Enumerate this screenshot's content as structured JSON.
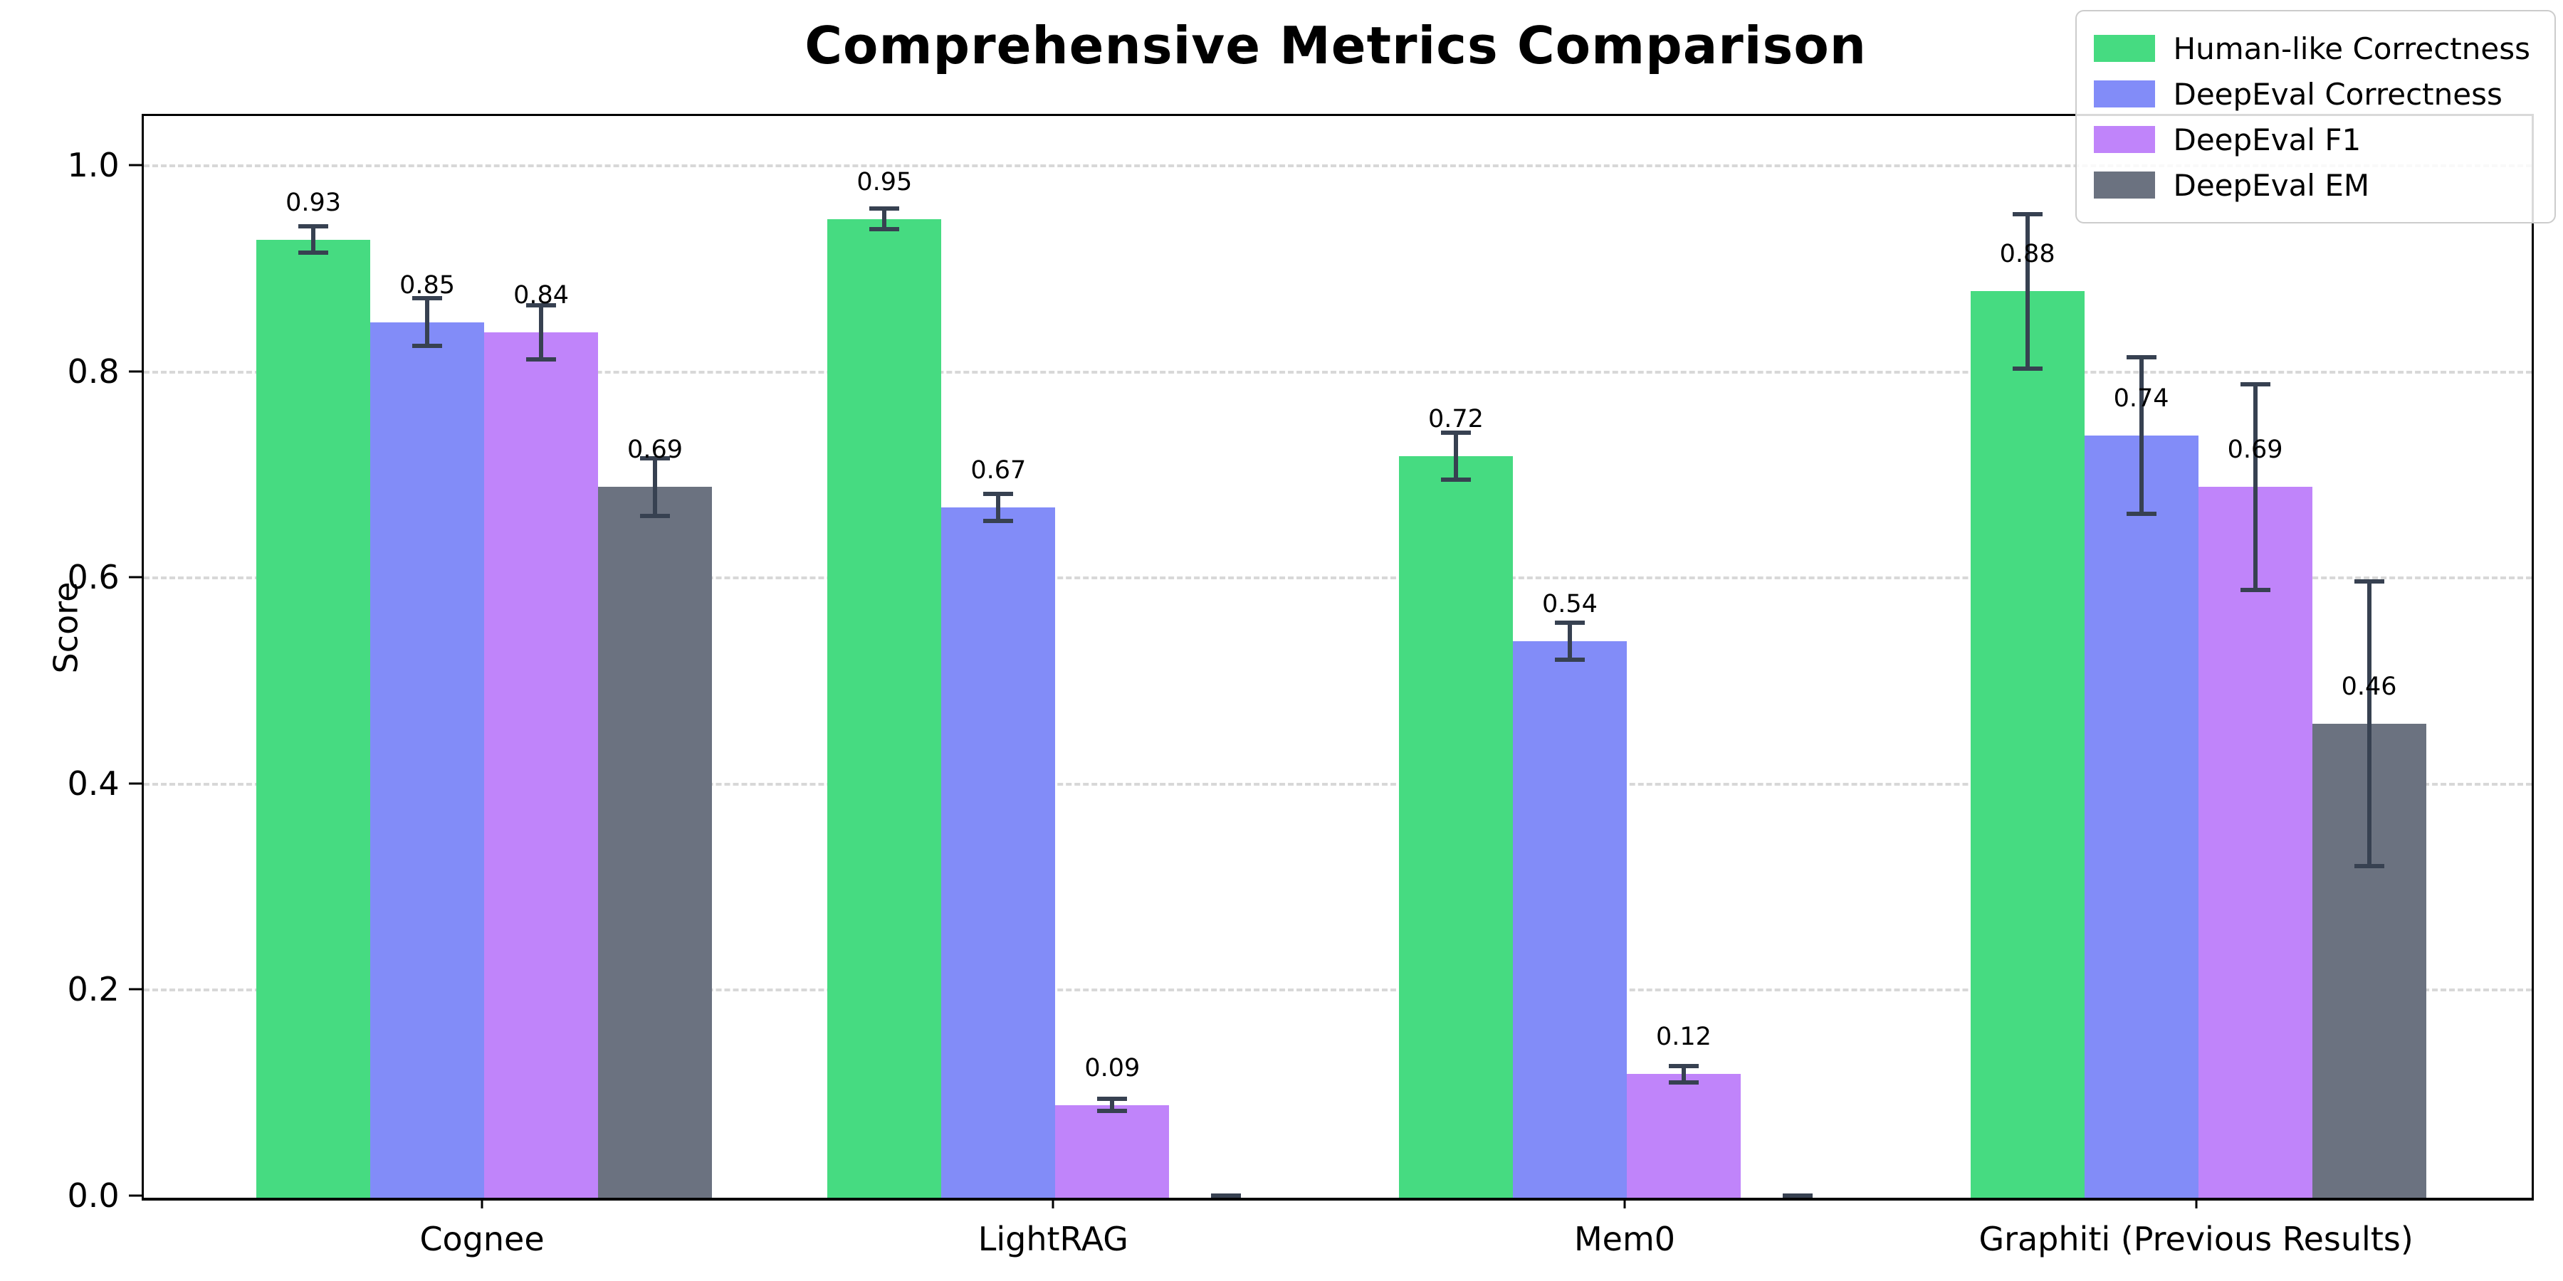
{
  "chart_data": {
    "type": "bar",
    "title": "Comprehensive Metrics Comparison",
    "ylabel": "Score",
    "xlabel": "",
    "ylim": [
      0,
      1.05
    ],
    "yticks": [
      0.0,
      0.2,
      0.4,
      0.6,
      0.8,
      1.0
    ],
    "ytick_labels": [
      "0.0",
      "0.2",
      "0.4",
      "0.6",
      "0.8",
      "1.0"
    ],
    "grid": "horizontal dashed gridlines at each ytick above 0",
    "legend_position": "upper right",
    "categories": [
      "Cognee",
      "LightRAG",
      "Mem0",
      "Graphiti (Previous Results)"
    ],
    "series": [
      {
        "name": "Human-like Correctness",
        "color": "#46db81",
        "values": [
          0.93,
          0.95,
          0.72,
          0.88
        ],
        "errors": [
          0.015,
          0.012,
          0.025,
          0.077
        ],
        "labels": [
          "0.93",
          "0.95",
          "0.72",
          "0.88"
        ]
      },
      {
        "name": "DeepEval Correctness",
        "color": "#828cf8",
        "values": [
          0.85,
          0.67,
          0.54,
          0.74
        ],
        "errors": [
          0.025,
          0.015,
          0.02,
          0.078
        ],
        "labels": [
          "0.85",
          "0.67",
          "0.54",
          "0.74"
        ]
      },
      {
        "name": "DeepEval F1",
        "color": "#c084fa",
        "values": [
          0.84,
          0.09,
          0.12,
          0.69
        ],
        "errors": [
          0.028,
          0.008,
          0.01,
          0.102
        ],
        "labels": [
          "0.84",
          "0.09",
          "0.12",
          "0.69"
        ]
      },
      {
        "name": "DeepEval EM",
        "color": "#6b7280",
        "values": [
          0.69,
          0.0,
          0.0,
          0.46
        ],
        "errors": [
          0.03,
          0.004,
          0.004,
          0.14
        ],
        "labels": [
          "0.69",
          null,
          null,
          "0.46"
        ]
      }
    ],
    "error_bar_color": "#374151"
  }
}
